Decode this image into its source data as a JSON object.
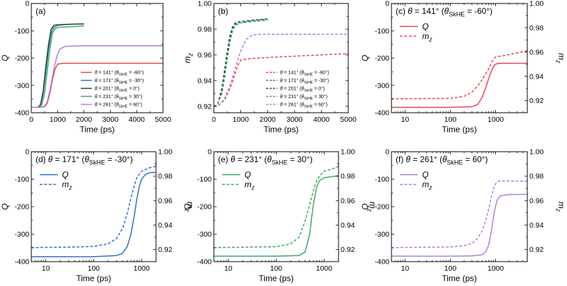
{
  "colors": {
    "p141": "#e8474e",
    "p171": "#2e72c4",
    "p201": "#2b4a2e",
    "p231": "#3aaa63",
    "p261": "#b07fe0"
  },
  "chart_data": [
    {
      "id": "a",
      "type": "line",
      "title": "(a)",
      "xlabel": "Time (ps)",
      "ylabel": "Q",
      "xscale": "linear",
      "xlim": [
        0,
        5000
      ],
      "ylim": [
        -400,
        0
      ],
      "xticks": [
        0,
        1000,
        2000,
        3000,
        4000,
        5000
      ],
      "yticks": [
        -400,
        -300,
        -200,
        -100,
        0
      ],
      "xticklabels": [
        "0",
        "1000",
        "2000",
        "3000",
        "4000",
        "5000"
      ],
      "yticklabels": [
        "-400",
        "-300",
        "-200",
        "-100",
        "0"
      ],
      "legend_position": "bottom-right",
      "series": [
        {
          "name": "θ = 141° (θSkHE = -60°)",
          "color_key": "p141",
          "dash": false,
          "x": [
            0,
            300,
            500,
            600,
            700,
            800,
            900,
            1000,
            1200,
            2000,
            5000
          ],
          "y": [
            -380,
            -380,
            -378,
            -365,
            -330,
            -280,
            -240,
            -222,
            -219,
            -219,
            -219
          ]
        },
        {
          "name": "θ = 171° (θSkHE = -30°)",
          "color_key": "p171",
          "dash": false,
          "x": [
            0,
            250,
            350,
            450,
            550,
            650,
            750,
            850,
            1000,
            1500,
            2000
          ],
          "y": [
            -380,
            -380,
            -372,
            -330,
            -250,
            -170,
            -110,
            -88,
            -80,
            -76,
            -75
          ]
        },
        {
          "name": "θ = 201° (θSkHE = 0°)",
          "color_key": "p201",
          "dash": false,
          "x": [
            0,
            250,
            350,
            450,
            550,
            650,
            750,
            850,
            1000,
            1500,
            2000
          ],
          "y": [
            -380,
            -380,
            -370,
            -320,
            -230,
            -150,
            -95,
            -80,
            -78,
            -76,
            -75
          ]
        },
        {
          "name": "θ = 231° (θSkHE = 30°)",
          "color_key": "p231",
          "dash": false,
          "x": [
            0,
            300,
            400,
            500,
            600,
            700,
            800,
            900,
            1000,
            1500,
            2000
          ],
          "y": [
            -380,
            -380,
            -370,
            -330,
            -250,
            -170,
            -110,
            -92,
            -88,
            -85,
            -82
          ]
        },
        {
          "name": "θ = 261° (θSkHE = 60°)",
          "color_key": "p261",
          "dash": false,
          "x": [
            0,
            300,
            500,
            600,
            700,
            800,
            900,
            1000,
            1100,
            1300,
            2000,
            5000
          ],
          "y": [
            -380,
            -380,
            -376,
            -360,
            -320,
            -270,
            -220,
            -185,
            -165,
            -157,
            -155,
            -155
          ]
        }
      ]
    },
    {
      "id": "b",
      "type": "line",
      "title": "(b)",
      "xlabel": "Time (ps)",
      "ylabel": "mz",
      "xscale": "linear",
      "xlim": [
        0,
        5000
      ],
      "ylim": [
        0.915,
        1.0
      ],
      "xticks": [
        0,
        1000,
        2000,
        3000,
        4000,
        5000
      ],
      "yticks": [
        0.92,
        0.94,
        0.96,
        0.98,
        1.0
      ],
      "xticklabels": [
        "0",
        "1000",
        "2000",
        "3000",
        "4000",
        "5000"
      ],
      "yticklabels": [
        "0.92",
        "0.94",
        "0.96",
        "0.98",
        "1.00"
      ],
      "legend_position": "bottom-right",
      "series": [
        {
          "name": "θ = 141° (θSkHE = -60°)",
          "color_key": "p141",
          "dash": true,
          "x": [
            0,
            200,
            400,
            600,
            800,
            900,
            1000,
            1300,
            2000,
            3000,
            4000,
            5000
          ],
          "y": [
            0.92,
            0.921,
            0.925,
            0.934,
            0.946,
            0.952,
            0.956,
            0.957,
            0.958,
            0.959,
            0.96,
            0.961
          ]
        },
        {
          "name": "θ = 171° (θSkHE = -30°)",
          "color_key": "p171",
          "dash": true,
          "x": [
            0,
            150,
            300,
            400,
            500,
            600,
            700,
            800,
            1000,
            1500,
            2000
          ],
          "y": [
            0.92,
            0.922,
            0.932,
            0.945,
            0.96,
            0.972,
            0.98,
            0.984,
            0.985,
            0.987,
            0.988
          ]
        },
        {
          "name": "θ = 201° (θSkHE = 0°)",
          "color_key": "p201",
          "dash": true,
          "x": [
            0,
            150,
            300,
            400,
            500,
            600,
            700,
            800,
            1000,
            1500,
            2000
          ],
          "y": [
            0.92,
            0.922,
            0.934,
            0.948,
            0.963,
            0.975,
            0.982,
            0.985,
            0.986,
            0.987,
            0.988
          ]
        },
        {
          "name": "θ = 231° (θSkHE = 30°)",
          "color_key": "p231",
          "dash": true,
          "x": [
            0,
            150,
            300,
            400,
            500,
            600,
            700,
            800,
            1000,
            1500,
            2000
          ],
          "y": [
            0.92,
            0.922,
            0.93,
            0.942,
            0.957,
            0.97,
            0.979,
            0.983,
            0.985,
            0.986,
            0.987
          ]
        },
        {
          "name": "θ = 261° (θSkHE = 60°)",
          "color_key": "p261",
          "dash": true,
          "x": [
            0,
            200,
            400,
            600,
            800,
            1000,
            1200,
            1400,
            1600,
            2000,
            3000,
            5000
          ],
          "y": [
            0.92,
            0.921,
            0.926,
            0.936,
            0.95,
            0.963,
            0.972,
            0.975,
            0.976,
            0.976,
            0.976,
            0.976
          ]
        }
      ]
    },
    {
      "id": "c",
      "type": "line",
      "title": "(c) θ = 141° (θSkHE = -60°)",
      "xlabel": "Time (ps)",
      "ylabel": "Q",
      "ylabel_right": "mz",
      "xscale": "log",
      "xlim": [
        5,
        5000
      ],
      "ylim": [
        -400,
        0
      ],
      "y2lim": [
        0.91,
        1.0
      ],
      "xticks": [
        10,
        100,
        1000
      ],
      "yticks": [
        -400,
        -300,
        -200,
        -100,
        0
      ],
      "y2ticks": [
        0.92,
        0.94,
        0.96,
        0.98,
        1.0
      ],
      "xticklabels": [
        "10",
        "100",
        "1000"
      ],
      "yticklabels": [
        "-400",
        "-300",
        "-200",
        "-100",
        "0"
      ],
      "y2ticklabels": [
        "0.92",
        "0.94",
        "0.96",
        "0.98",
        "1.00"
      ],
      "legend_position": "top-left",
      "series": [
        {
          "name": "Q",
          "color_key": "p141",
          "dash": false,
          "axis": "left",
          "x": [
            5,
            100,
            300,
            400,
            500,
            600,
            700,
            800,
            900,
            1000,
            1200,
            2000,
            5000
          ],
          "y": [
            -380,
            -380,
            -378,
            -370,
            -345,
            -310,
            -275,
            -248,
            -230,
            -222,
            -219,
            -219,
            -219
          ]
        },
        {
          "name": "mz",
          "color_key": "p141",
          "dash": true,
          "axis": "right",
          "x": [
            5,
            100,
            200,
            300,
            400,
            500,
            600,
            700,
            800,
            900,
            1000,
            1500,
            2000,
            5000
          ],
          "y": [
            0.9215,
            0.9218,
            0.9235,
            0.927,
            0.932,
            0.937,
            0.942,
            0.946,
            0.951,
            0.954,
            0.956,
            0.957,
            0.958,
            0.961
          ]
        }
      ]
    },
    {
      "id": "d",
      "type": "line",
      "title": "(d) θ = 171° (θSkHE = -30°)",
      "xlabel": "Time (ps)",
      "ylabel": "Q",
      "ylabel_right": "mz",
      "xscale": "log",
      "xlim": [
        5,
        2000
      ],
      "ylim": [
        -400,
        0
      ],
      "y2lim": [
        0.91,
        1.0
      ],
      "xticks": [
        10,
        100,
        1000
      ],
      "yticks": [
        -400,
        -300,
        -200,
        -100,
        0
      ],
      "y2ticks": [
        0.92,
        0.94,
        0.96,
        0.98,
        1.0
      ],
      "xticklabels": [
        "10",
        "100",
        "1000"
      ],
      "yticklabels": [
        "-400",
        "-300",
        "-200",
        "-100",
        "0"
      ],
      "y2ticklabels": [
        "0.92",
        "0.94",
        "0.96",
        "0.98",
        "1.00"
      ],
      "legend_position": "top-left",
      "series": [
        {
          "name": "Q",
          "color_key": "p171",
          "dash": false,
          "axis": "left",
          "x": [
            5,
            100,
            300,
            400,
            500,
            600,
            700,
            800,
            900,
            1000,
            1200,
            1500,
            2000
          ],
          "y": [
            -382,
            -382,
            -378,
            -370,
            -345,
            -300,
            -235,
            -170,
            -125,
            -100,
            -83,
            -76,
            -75
          ]
        },
        {
          "name": "mz",
          "color_key": "p171",
          "dash": true,
          "axis": "right",
          "x": [
            5,
            50,
            100,
            200,
            300,
            400,
            500,
            600,
            700,
            800,
            1000,
            1500,
            2000
          ],
          "y": [
            0.9215,
            0.922,
            0.9225,
            0.9245,
            0.929,
            0.937,
            0.949,
            0.962,
            0.972,
            0.979,
            0.984,
            0.987,
            0.988
          ]
        }
      ]
    },
    {
      "id": "e",
      "type": "line",
      "title": "(e) θ = 231° (θSkHE = 30°)",
      "xlabel": "Time (ps)",
      "ylabel": "Q",
      "ylabel_right": "mz",
      "xscale": "log",
      "xlim": [
        5,
        2000
      ],
      "ylim": [
        -400,
        0
      ],
      "y2lim": [
        0.91,
        1.0
      ],
      "xticks": [
        10,
        100,
        1000
      ],
      "yticks": [
        -400,
        -300,
        -200,
        -100,
        0
      ],
      "y2ticks": [
        0.92,
        0.94,
        0.96,
        0.98,
        1.0
      ],
      "xticklabels": [
        "10",
        "100",
        "1000"
      ],
      "yticklabels": [
        "-400",
        "-300",
        "-200",
        "-100",
        "0"
      ],
      "y2ticklabels": [
        "0.92",
        "0.94",
        "0.96",
        "0.98",
        "1.00"
      ],
      "legend_position": "top-left",
      "series": [
        {
          "name": "Q",
          "color_key": "p231",
          "dash": false,
          "axis": "left",
          "x": [
            5,
            100,
            300,
            400,
            500,
            550,
            600,
            700,
            800,
            1000,
            1500,
            2000
          ],
          "y": [
            -380,
            -380,
            -378,
            -365,
            -300,
            -240,
            -190,
            -130,
            -105,
            -95,
            -90,
            -88
          ]
        },
        {
          "name": "mz",
          "color_key": "p231",
          "dash": true,
          "axis": "right",
          "x": [
            5,
            100,
            200,
            300,
            400,
            500,
            600,
            700,
            800,
            1000,
            1500,
            2000
          ],
          "y": [
            0.9215,
            0.9222,
            0.9245,
            0.93,
            0.943,
            0.957,
            0.968,
            0.976,
            0.98,
            0.984,
            0.986,
            0.988
          ]
        }
      ]
    },
    {
      "id": "f",
      "type": "line",
      "title": "(f) θ = 261° (θSkHE = 60°)",
      "xlabel": "Time (ps)",
      "ylabel": "Q",
      "ylabel_right": "mz",
      "xscale": "log",
      "xlim": [
        5,
        5000
      ],
      "ylim": [
        -400,
        0
      ],
      "y2lim": [
        0.91,
        1.0
      ],
      "xticks": [
        10,
        100,
        1000
      ],
      "yticks": [
        -400,
        -300,
        -200,
        -100,
        0
      ],
      "y2ticks": [
        0.92,
        0.94,
        0.96,
        0.98,
        1.0
      ],
      "xticklabels": [
        "10",
        "100",
        "1000"
      ],
      "yticklabels": [
        "-400",
        "-300",
        "-200",
        "-100",
        "0"
      ],
      "y2ticklabels": [
        "0.92",
        "0.94",
        "0.96",
        "0.98",
        "1.00"
      ],
      "legend_position": "top-left",
      "series": [
        {
          "name": "Q",
          "color_key": "p261",
          "dash": false,
          "axis": "left",
          "x": [
            5,
            100,
            300,
            500,
            600,
            700,
            800,
            900,
            1000,
            1100,
            1300,
            2000,
            5000
          ],
          "y": [
            -380,
            -380,
            -379,
            -375,
            -365,
            -340,
            -290,
            -235,
            -195,
            -172,
            -160,
            -156,
            -155
          ]
        },
        {
          "name": "mz",
          "color_key": "p261",
          "dash": true,
          "axis": "right",
          "x": [
            5,
            100,
            200,
            300,
            400,
            500,
            600,
            700,
            800,
            900,
            1000,
            1200,
            1500,
            2000,
            5000
          ],
          "y": [
            0.9215,
            0.922,
            0.923,
            0.925,
            0.929,
            0.935,
            0.943,
            0.953,
            0.963,
            0.97,
            0.974,
            0.976,
            0.976,
            0.976,
            0.976
          ]
        }
      ]
    }
  ]
}
